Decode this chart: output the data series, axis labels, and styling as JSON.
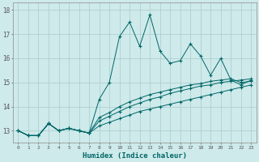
{
  "xlabel": "Humidex (Indice chaleur)",
  "background_color": "#ceeaeb",
  "grid_color": "#b0d0d0",
  "line_color": "#006666",
  "x_values": [
    0,
    1,
    2,
    3,
    4,
    5,
    6,
    7,
    8,
    9,
    10,
    11,
    12,
    13,
    14,
    15,
    16,
    17,
    18,
    19,
    20,
    21,
    22,
    23
  ],
  "line1": [
    13.0,
    12.8,
    12.8,
    13.3,
    13.0,
    13.1,
    13.0,
    12.9,
    14.3,
    15.0,
    16.9,
    17.5,
    16.5,
    17.8,
    16.3,
    15.8,
    15.9,
    16.6,
    16.1,
    15.3,
    16.0,
    15.1,
    14.9,
    15.1
  ],
  "line2": [
    13.0,
    12.8,
    12.8,
    13.3,
    13.0,
    13.1,
    13.0,
    12.9,
    13.4,
    13.6,
    13.8,
    14.0,
    14.15,
    14.3,
    14.4,
    14.55,
    14.65,
    14.75,
    14.85,
    14.9,
    15.0,
    15.05,
    15.1,
    15.15
  ],
  "line3": [
    13.0,
    12.8,
    12.8,
    13.3,
    13.0,
    13.1,
    13.0,
    12.9,
    13.2,
    13.35,
    13.5,
    13.65,
    13.8,
    13.9,
    14.0,
    14.1,
    14.2,
    14.3,
    14.4,
    14.5,
    14.6,
    14.7,
    14.8,
    14.9
  ],
  "line4": [
    13.0,
    12.8,
    12.8,
    13.3,
    13.0,
    13.1,
    13.0,
    12.9,
    13.55,
    13.75,
    14.0,
    14.2,
    14.35,
    14.5,
    14.6,
    14.7,
    14.8,
    14.9,
    14.95,
    15.05,
    15.1,
    15.15,
    15.0,
    15.05
  ],
  "ylim": [
    12.5,
    18.3
  ],
  "xlim": [
    -0.5,
    23.5
  ],
  "yticks": [
    13,
    14,
    15,
    16,
    17,
    18
  ],
  "xticks": [
    0,
    1,
    2,
    3,
    4,
    5,
    6,
    7,
    8,
    9,
    10,
    11,
    12,
    13,
    14,
    15,
    16,
    17,
    18,
    19,
    20,
    21,
    22,
    23
  ]
}
